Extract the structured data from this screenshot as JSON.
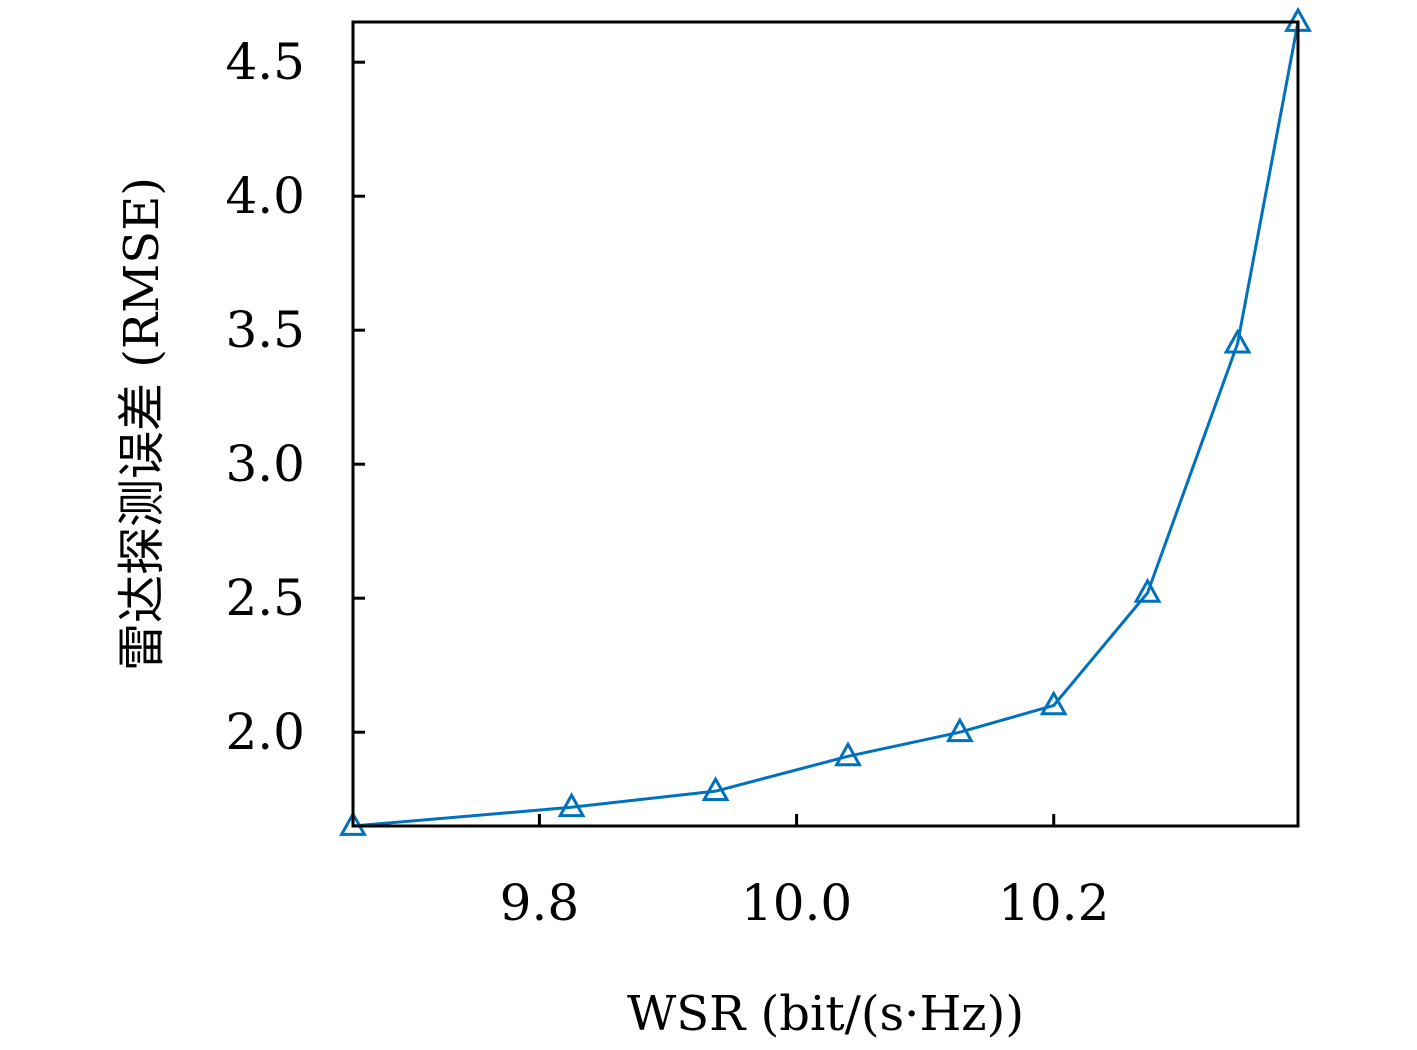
{
  "chart_data": {
    "type": "line",
    "title": "",
    "xlabel": "WSR (bit/(s·Hz))",
    "ylabel": "雷达探测误差 (RMSE)",
    "xlim": [
      9.655,
      10.39
    ],
    "ylim": [
      1.65,
      4.65
    ],
    "xticks": [
      9.8,
      10.0,
      10.2
    ],
    "yticks": [
      2.0,
      2.5,
      3.0,
      3.5,
      4.0,
      4.5
    ],
    "xtick_labels": [
      "9.8",
      "10.0",
      "10.2"
    ],
    "ytick_labels": [
      "2.0",
      "2.5",
      "3.0",
      "3.5",
      "4.0",
      "4.5"
    ],
    "grid": false,
    "legend": null,
    "series": [
      {
        "name": "",
        "color": "#0072BD",
        "marker": "triangle-open",
        "x": [
          9.655,
          9.825,
          9.937,
          10.04,
          10.127,
          10.2,
          10.273,
          10.343,
          10.39
        ],
        "y": [
          1.65,
          1.72,
          1.78,
          1.91,
          2.0,
          2.1,
          2.52,
          3.45,
          4.65
        ]
      }
    ]
  }
}
